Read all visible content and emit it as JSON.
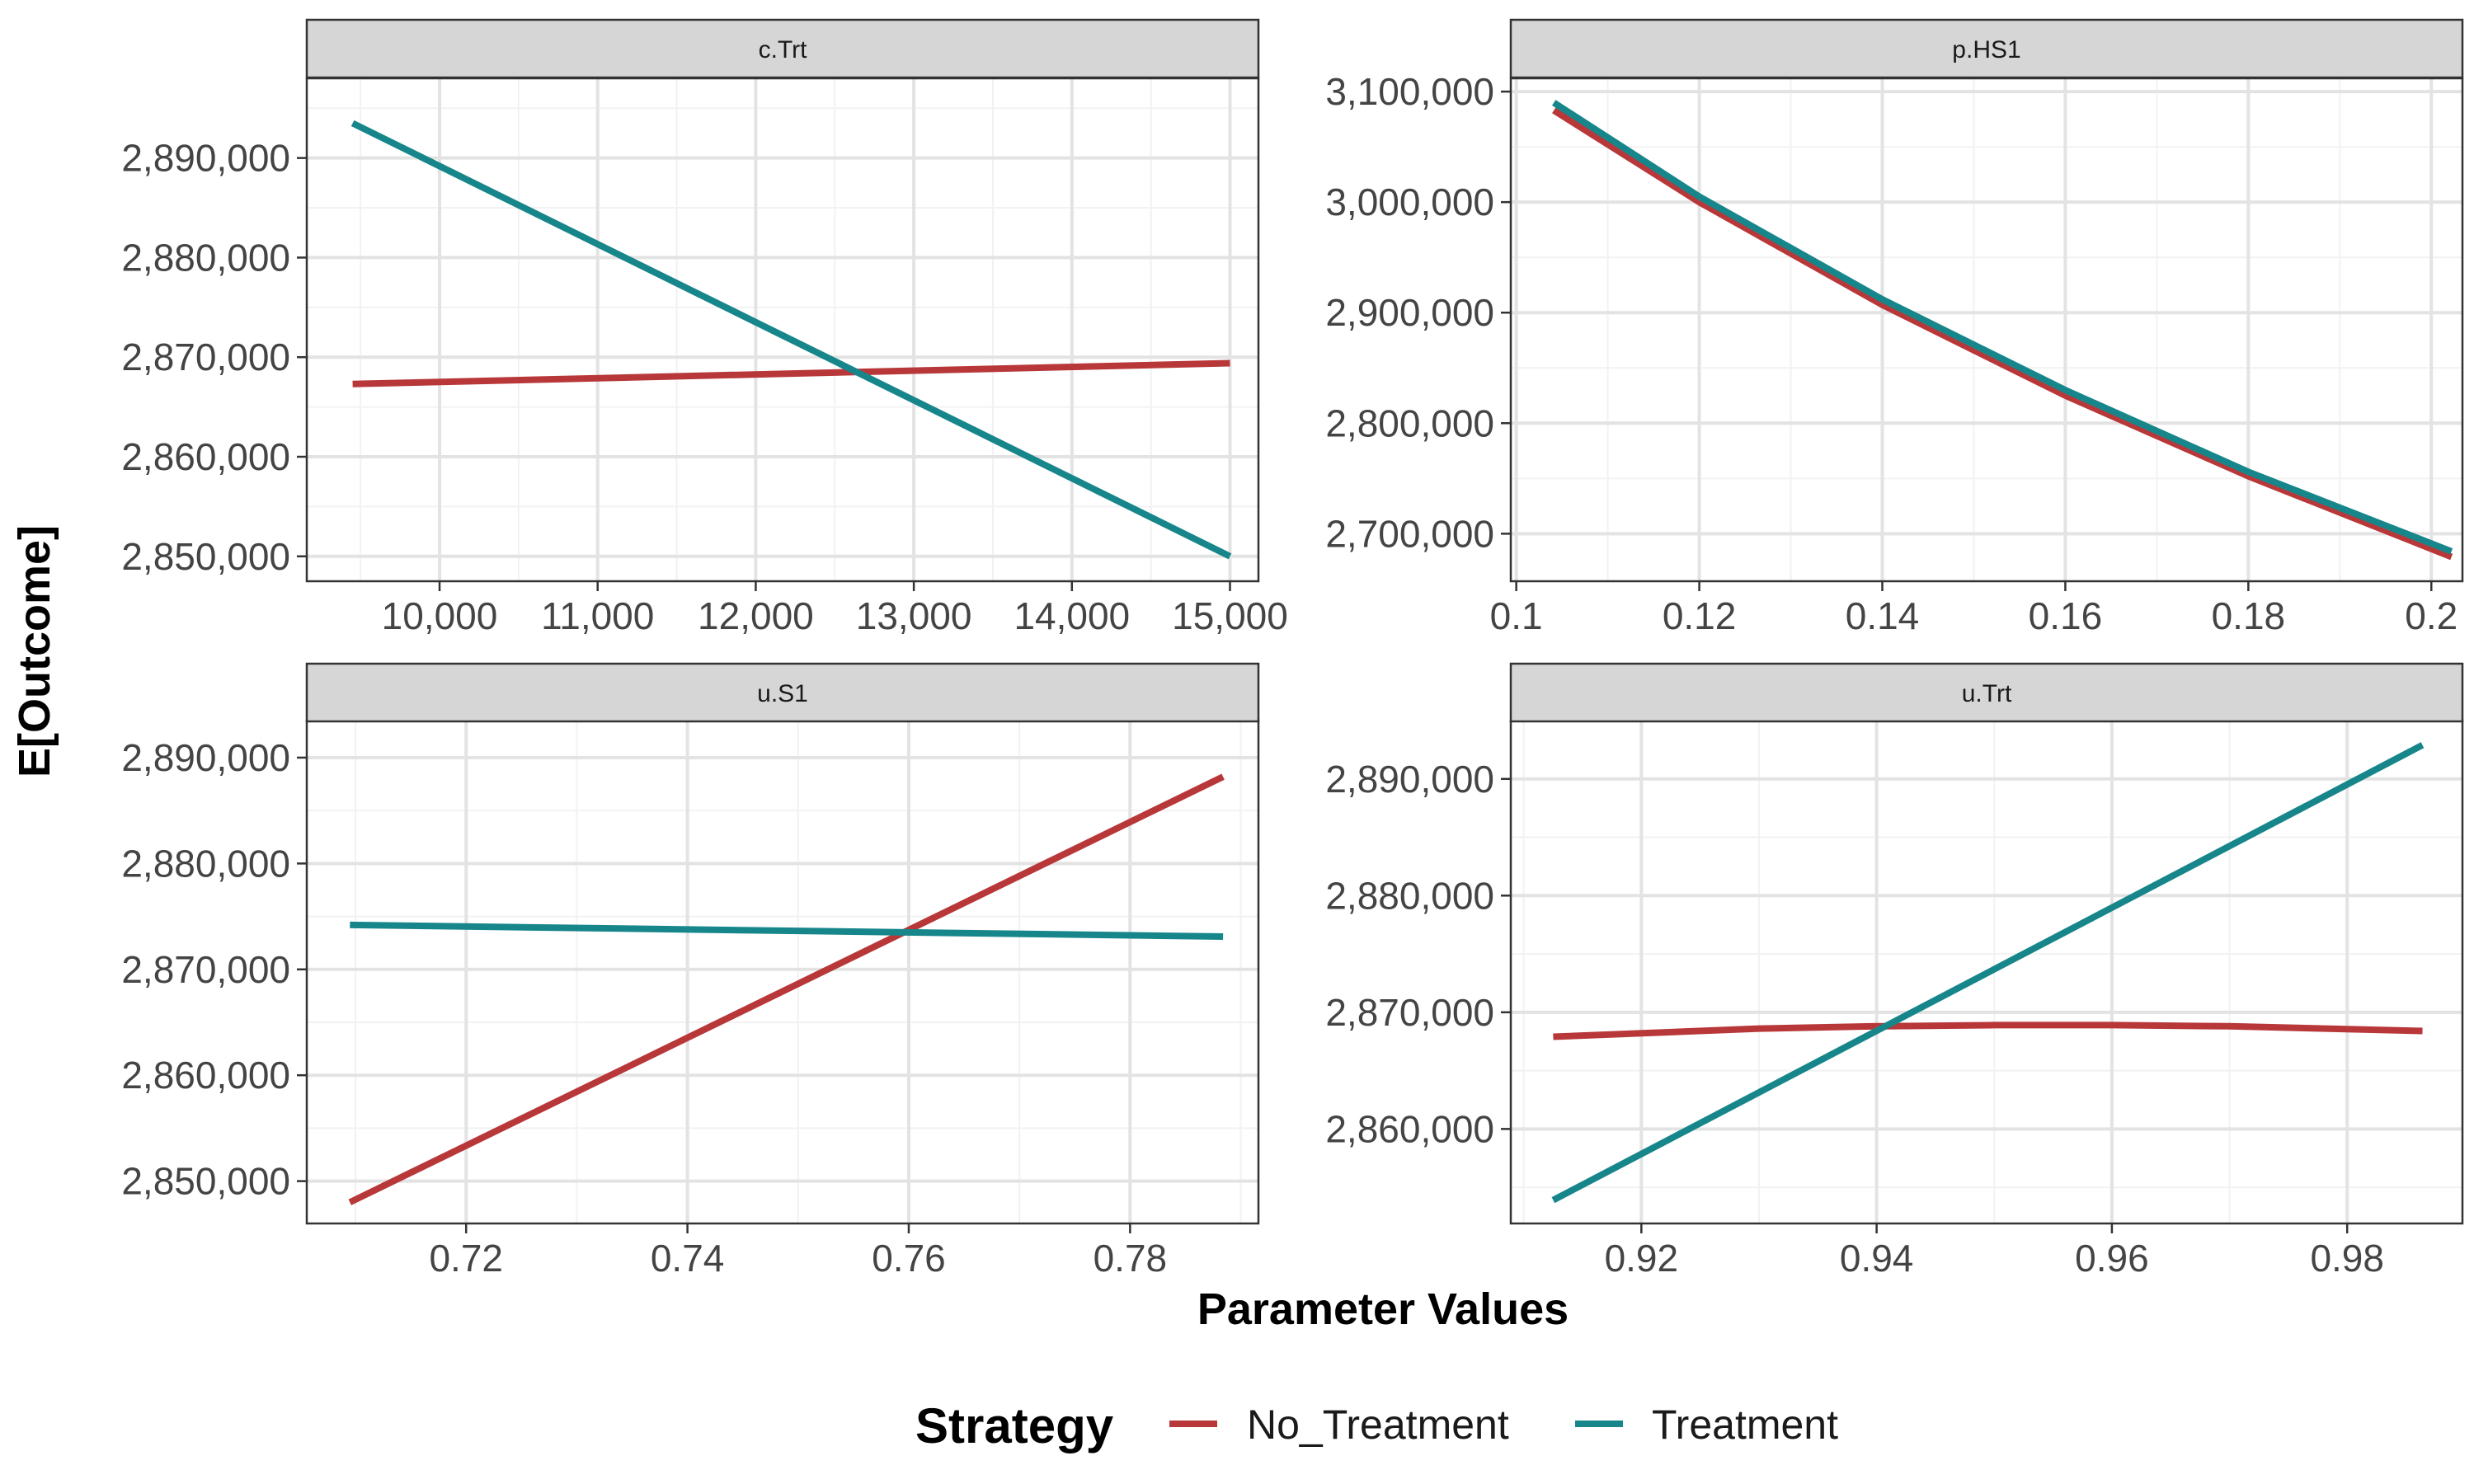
{
  "colors": {
    "No_Treatment": "#B8383A",
    "Treatment": "#17868B",
    "grid_major": "#E3E3E3",
    "grid_minor": "#F2F2F2",
    "strip_fill": "#D6D6D6",
    "border": "#333333"
  },
  "chart_data": {
    "type": "line",
    "xlabel": "Parameter Values",
    "ylabel": "E[Outcome]",
    "legend": {
      "title": "Strategy",
      "position": "bottom",
      "entries": [
        {
          "key": "No_Treatment",
          "label": "No_Treatment"
        },
        {
          "key": "Treatment",
          "label": "Treatment"
        }
      ]
    },
    "grid": true,
    "panels": [
      {
        "strip": "c.Trt",
        "xlim": [
          9160,
          15180
        ],
        "ylim": [
          2847500,
          2898000
        ],
        "xticks": [
          10000,
          11000,
          12000,
          13000,
          14000,
          15000
        ],
        "xtick_labels": [
          "10,000",
          "11,000",
          "12,000",
          "13,000",
          "14,000",
          "15,000"
        ],
        "yticks": [
          2850000,
          2860000,
          2870000,
          2880000,
          2890000
        ],
        "ytick_labels": [
          "2,850,000",
          "2,860,000",
          "2,870,000",
          "2,880,000",
          "2,890,000"
        ],
        "series": [
          {
            "name": "No_Treatment",
            "x": [
              9450,
              15000
            ],
            "y": [
              2867300,
              2869400
            ]
          },
          {
            "name": "Treatment",
            "x": [
              9450,
              15000
            ],
            "y": [
              2893500,
              2850000
            ]
          }
        ]
      },
      {
        "strip": "p.HS1",
        "xlim": [
          0.0994,
          0.2034
        ],
        "ylim": [
          2657000,
          3112000
        ],
        "xticks": [
          0.1,
          0.12,
          0.14,
          0.16,
          0.18,
          0.2
        ],
        "xtick_labels": [
          "0.1",
          "0.12",
          "0.14",
          "0.16",
          "0.18",
          "0.2"
        ],
        "yticks": [
          2700000,
          2800000,
          2900000,
          3000000,
          3100000
        ],
        "ytick_labels": [
          "2,700,000",
          "2,800,000",
          "2,900,000",
          "3,000,000",
          "3,100,000"
        ],
        "series": [
          {
            "name": "No_Treatment",
            "x": [
              0.1041,
              0.12,
              0.14,
              0.16,
              0.18,
              0.2022
            ],
            "y": [
              3083000,
              3000000,
              2907000,
              2825000,
              2752000,
              2679000
            ]
          },
          {
            "name": "Treatment",
            "x": [
              0.1041,
              0.12,
              0.14,
              0.16,
              0.18,
              0.2022
            ],
            "y": [
              3090000,
              3005000,
              2912000,
              2830000,
              2756000,
              2684000
            ]
          }
        ]
      },
      {
        "strip": "u.S1",
        "xlim": [
          0.7056,
          0.7916
        ],
        "ylim": [
          2846000,
          2893500
        ],
        "xticks": [
          0.72,
          0.74,
          0.76,
          0.78
        ],
        "xtick_labels": [
          "0.72",
          "0.74",
          "0.76",
          "0.78"
        ],
        "yticks": [
          2850000,
          2860000,
          2870000,
          2880000,
          2890000
        ],
        "ytick_labels": [
          "2,850,000",
          "2,860,000",
          "2,870,000",
          "2,880,000",
          "2,890,000"
        ],
        "series": [
          {
            "name": "No_Treatment",
            "x": [
              0.7095,
              0.7884
            ],
            "y": [
              2848000,
              2888200
            ]
          },
          {
            "name": "Treatment",
            "x": [
              0.7095,
              0.7884
            ],
            "y": [
              2874200,
              2873100
            ]
          }
        ]
      },
      {
        "strip": "u.Trt",
        "xlim": [
          0.9089,
          0.9898
        ],
        "ylim": [
          2851900,
          2895000
        ],
        "xticks": [
          0.92,
          0.94,
          0.96,
          0.98
        ],
        "xtick_labels": [
          "0.92",
          "0.94",
          "0.96",
          "0.98"
        ],
        "yticks": [
          2860000,
          2870000,
          2880000,
          2890000
        ],
        "ytick_labels": [
          "2,860,000",
          "2,870,000",
          "2,880,000",
          "2,890,000"
        ],
        "series": [
          {
            "name": "No_Treatment",
            "x": [
              0.9125,
              0.93,
              0.94,
              0.95,
              0.96,
              0.97,
              0.9864
            ],
            "y": [
              2867900,
              2868600,
              2868800,
              2868900,
              2868900,
              2868800,
              2868400
            ]
          },
          {
            "name": "Treatment",
            "x": [
              0.9125,
              0.9864
            ],
            "y": [
              2853900,
              2892900
            ]
          }
        ]
      }
    ]
  }
}
